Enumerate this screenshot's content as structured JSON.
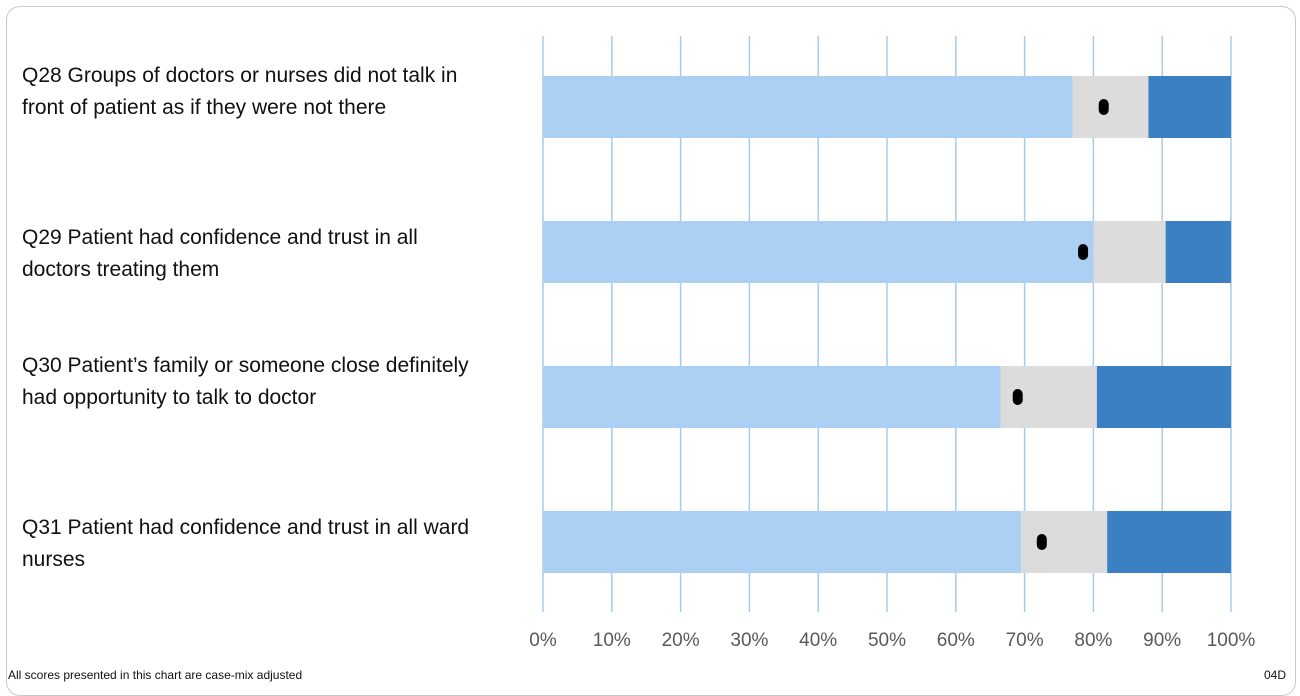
{
  "footnote": "All scores presented in this chart are case-mix adjusted",
  "chart_code": "04D",
  "colors": {
    "low": "#abd0f3",
    "middle": "#dcdcdc",
    "high": "#3a80c3",
    "gridline": "#a9cbe8",
    "marker": "#000000",
    "frame": "#c8c8c8"
  },
  "chart_data": {
    "type": "bar",
    "stacked": true,
    "orientation": "horizontal",
    "categories": [
      "Q28 Groups of doctors or nurses did not talk in front of patient as if they were not there",
      "Q29 Patient had confidence and trust in all doctors treating them",
      "Q30 Patient’s family or someone close definitely had opportunity to talk to doctor",
      "Q31 Patient had confidence and trust in all ward nurses"
    ],
    "segments": [
      {
        "values": [
          77,
          80,
          66.5,
          69.5
        ]
      },
      {
        "values": [
          11,
          10.5,
          14,
          12.5
        ]
      },
      {
        "values": [
          12,
          9.5,
          19.5,
          18
        ]
      }
    ],
    "markers": [
      81.5,
      78.5,
      69,
      72.5
    ],
    "xlim": [
      0,
      100
    ],
    "xticks": [
      "0%",
      "10%",
      "20%",
      "30%",
      "40%",
      "50%",
      "60%",
      "70%",
      "80%",
      "90%",
      "100%"
    ],
    "grid": true
  }
}
